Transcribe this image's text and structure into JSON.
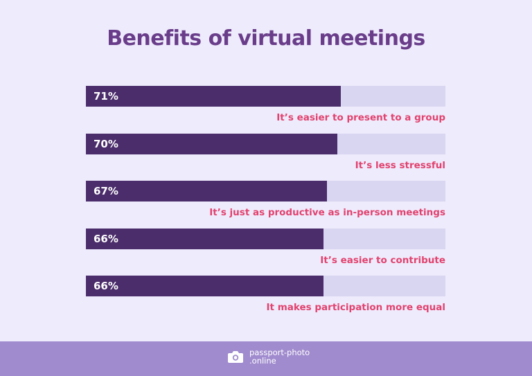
{
  "title": "Benefits of virtual meetings",
  "colors": {
    "background": "#eeebfc",
    "title": "#6a3d8a",
    "bar_fill": "#4b2d6b",
    "bar_track": "#d9d6f1",
    "label": "#e2426e",
    "footer": "#a08bce"
  },
  "bars": [
    {
      "value_label": "71%",
      "value": 71,
      "label": "It’s easier to present to a group"
    },
    {
      "value_label": "70%",
      "value": 70,
      "label": "It’s less stressful"
    },
    {
      "value_label": "67%",
      "value": 67,
      "label": "It’s just as productive as in-person meetings"
    },
    {
      "value_label": "66%",
      "value": 66,
      "label": "It’s easier to contribute"
    },
    {
      "value_label": "66%",
      "value": 66,
      "label": "It makes participation more equal"
    }
  ],
  "footer": {
    "logo_icon": "camera-icon",
    "brand_line1": "passport-photo",
    "brand_line2": ".online"
  },
  "chart_data": {
    "type": "bar",
    "orientation": "horizontal",
    "title": "Benefits of virtual meetings",
    "categories": [
      "It’s easier to present to a group",
      "It’s less stressful",
      "It’s just as productive as in-person meetings",
      "It’s easier to contribute",
      "It makes participation more equal"
    ],
    "values": [
      71,
      70,
      67,
      66,
      66
    ],
    "unit": "%",
    "xlim": [
      0,
      100
    ],
    "xlabel": "",
    "ylabel": "",
    "grid": false,
    "legend": null
  }
}
